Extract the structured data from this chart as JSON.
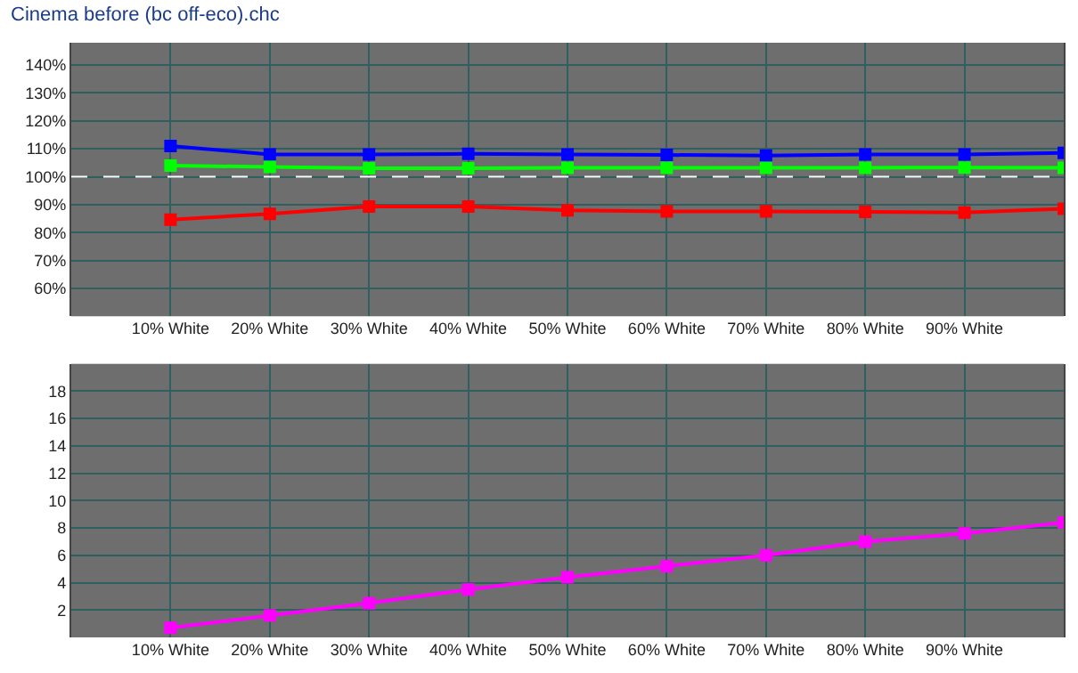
{
  "chart_data": [
    {
      "type": "line",
      "title": "Cinema before (bc off-eco).chc",
      "categories": [
        "10% White",
        "20% White",
        "30% White",
        "40% White",
        "50% White",
        "60% White",
        "70% White",
        "80% White",
        "90% White",
        null
      ],
      "series": [
        {
          "color": "#0000ff",
          "values": [
            111,
            108,
            108,
            108.2,
            108,
            107.8,
            107.6,
            108,
            108,
            108.5
          ]
        },
        {
          "color": "#00ff00",
          "values": [
            104,
            103.5,
            103,
            103,
            103.2,
            103.2,
            103.2,
            103.2,
            103.3,
            103.2
          ]
        },
        {
          "color": "#ff0000",
          "values": [
            84.6,
            86.7,
            89.3,
            89.3,
            88,
            87.6,
            87.6,
            87.4,
            87.2,
            88.5
          ]
        }
      ],
      "ylim": [
        50,
        148
      ],
      "yticks": [
        {
          "value": 60,
          "label": "60%"
        },
        {
          "value": 70,
          "label": "70%"
        },
        {
          "value": 80,
          "label": "80%"
        },
        {
          "value": 90,
          "label": "90%"
        },
        {
          "value": 100,
          "label": "100%"
        },
        {
          "value": 110,
          "label": "110%"
        },
        {
          "value": 120,
          "label": "120%"
        },
        {
          "value": 130,
          "label": "130%"
        },
        {
          "value": 140,
          "label": "140%"
        }
      ],
      "ref_lines": [
        {
          "axis": "y",
          "value": 100,
          "color": "#ffffff",
          "line_style": "dashed"
        }
      ],
      "grid": true,
      "marker": "square",
      "line_style": "solid"
    },
    {
      "type": "line",
      "categories": [
        "10% White",
        "20% White",
        "30% White",
        "40% White",
        "50% White",
        "60% White",
        "70% White",
        "80% White",
        "90% White",
        null
      ],
      "series": [
        {
          "color": "#ff00ff",
          "values": [
            0.7,
            1.6,
            2.5,
            3.5,
            4.4,
            5.2,
            6.0,
            7.0,
            7.6,
            8.4
          ]
        }
      ],
      "ylim": [
        0,
        20
      ],
      "yticks": [
        2,
        4,
        6,
        8,
        10,
        12,
        14,
        16,
        18
      ],
      "grid": true,
      "marker": "square",
      "line_style": "solid"
    }
  ]
}
